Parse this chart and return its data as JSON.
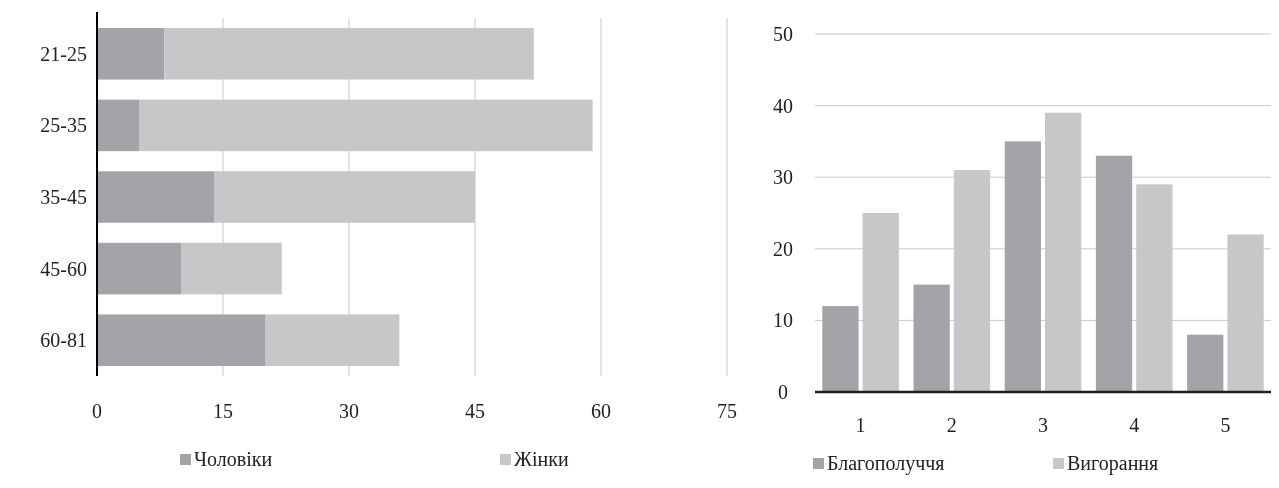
{
  "chart_data": [
    {
      "type": "bar",
      "orientation": "horizontal",
      "stacked": true,
      "categories": [
        "21-25",
        "25-35",
        "35-45",
        "45-60",
        "60-81"
      ],
      "series": [
        {
          "name": "Чоловіки",
          "color": "#a3a4a8",
          "values": [
            8,
            5,
            14,
            10,
            20
          ]
        },
        {
          "name": "Жінки",
          "color": "#c6c7c9",
          "values": [
            44,
            54,
            31,
            12,
            16
          ]
        }
      ],
      "xlim": [
        0,
        75
      ],
      "xticks": [
        0,
        15,
        30,
        45,
        60,
        75
      ],
      "grid": "x",
      "legend": "bottom"
    },
    {
      "type": "bar",
      "categories": [
        "1",
        "2",
        "3",
        "4",
        "5"
      ],
      "series": [
        {
          "name": "Благополуччя",
          "color": "#a3a4a8",
          "values": [
            12,
            15,
            35,
            33,
            8
          ]
        },
        {
          "name": "Вигорання",
          "color": "#c6c7c9",
          "values": [
            25,
            31,
            39,
            29,
            22
          ]
        }
      ],
      "ylim": [
        0,
        50
      ],
      "yticks": [
        0,
        10,
        20,
        30,
        40,
        50
      ],
      "grid": "y",
      "legend": "bottom"
    }
  ]
}
